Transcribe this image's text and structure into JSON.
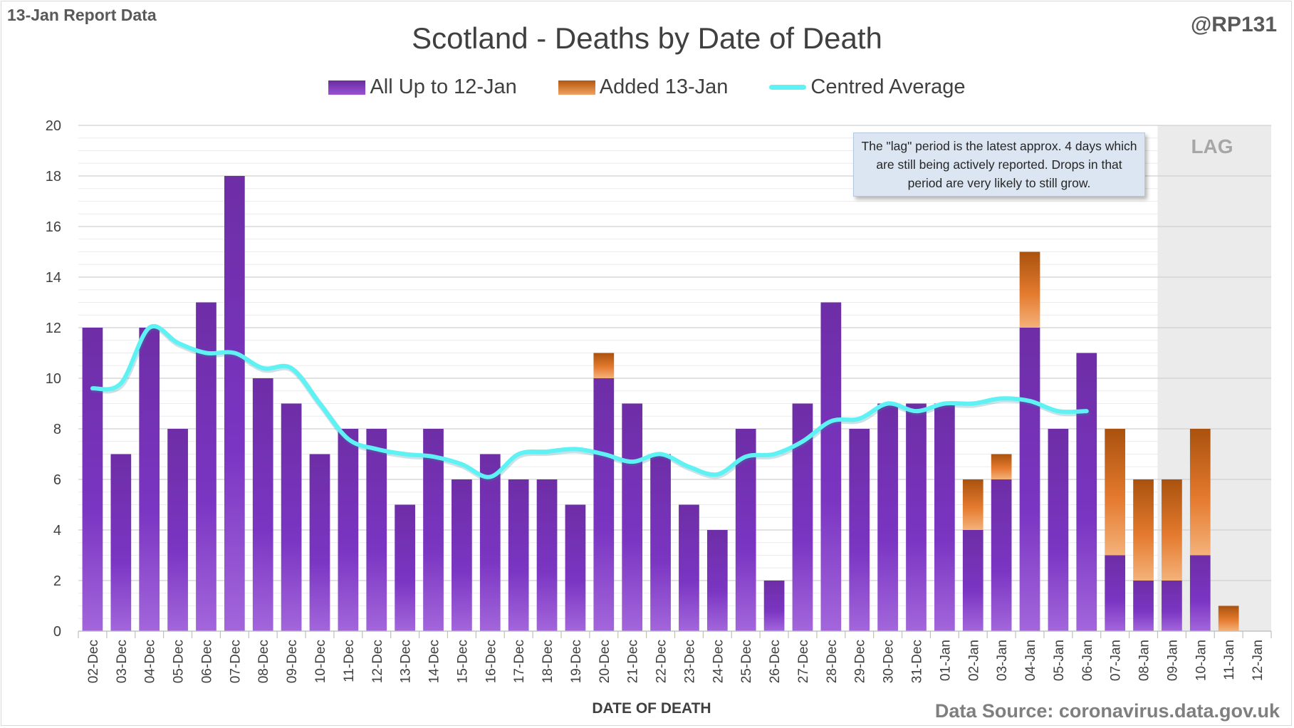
{
  "header": {
    "report_label": "13-Jan Report Data",
    "handle": "@RP131"
  },
  "footer": {
    "source": "Data Source: coronavirus.data.gov.uk"
  },
  "annotation": "The \"lag\" period is the latest approx. 4 days which are still being actively reported.  Drops in that period are very likely to still grow.",
  "lag_label": "LAG",
  "colors": {
    "base": "#7b33c0",
    "added": "#e5782a",
    "average": "#5ef2f4",
    "lag_shade": "#e7e7e7"
  },
  "chart_data": {
    "type": "bar",
    "stacked": true,
    "title": "Scotland - Deaths by Date of Death",
    "xlabel": "DATE OF DEATH",
    "ylabel": "",
    "ylim": [
      0,
      20
    ],
    "yticks": [
      0,
      2,
      4,
      6,
      8,
      10,
      12,
      14,
      16,
      18,
      20
    ],
    "grid": true,
    "legend_position": "top",
    "categories": [
      "02-Dec",
      "03-Dec",
      "04-Dec",
      "05-Dec",
      "06-Dec",
      "07-Dec",
      "08-Dec",
      "09-Dec",
      "10-Dec",
      "11-Dec",
      "12-Dec",
      "13-Dec",
      "14-Dec",
      "15-Dec",
      "16-Dec",
      "17-Dec",
      "18-Dec",
      "19-Dec",
      "20-Dec",
      "21-Dec",
      "22-Dec",
      "23-Dec",
      "24-Dec",
      "25-Dec",
      "26-Dec",
      "27-Dec",
      "28-Dec",
      "29-Dec",
      "30-Dec",
      "31-Dec",
      "01-Jan",
      "02-Jan",
      "03-Jan",
      "04-Jan",
      "05-Jan",
      "06-Jan",
      "07-Jan",
      "08-Jan",
      "09-Jan",
      "10-Jan",
      "11-Jan",
      "12-Jan"
    ],
    "series": [
      {
        "name": "All Up to 12-Jan",
        "type": "bar",
        "values": [
          12,
          7,
          12,
          8,
          13,
          18,
          10,
          9,
          7,
          8,
          8,
          5,
          8,
          6,
          7,
          6,
          6,
          5,
          10,
          9,
          7,
          5,
          4,
          8,
          2,
          9,
          13,
          8,
          9,
          9,
          9,
          4,
          6,
          12,
          8,
          11,
          3,
          2,
          2,
          3,
          0,
          0
        ]
      },
      {
        "name": "Added 13-Jan",
        "type": "bar",
        "values": [
          0,
          0,
          0,
          0,
          0,
          0,
          0,
          0,
          0,
          0,
          0,
          0,
          0,
          0,
          0,
          0,
          0,
          0,
          1,
          0,
          0,
          0,
          0,
          0,
          0,
          0,
          0,
          0,
          0,
          0,
          0,
          2,
          1,
          3,
          0,
          0,
          5,
          4,
          4,
          5,
          1,
          0
        ]
      },
      {
        "name": "Centred Average",
        "type": "line",
        "values": [
          9.6,
          9.8,
          12.0,
          11.4,
          11.0,
          11.0,
          10.4,
          10.4,
          9.0,
          7.6,
          7.2,
          7.0,
          6.9,
          6.6,
          6.1,
          7.0,
          7.1,
          7.2,
          7.0,
          6.7,
          7.0,
          6.5,
          6.2,
          6.9,
          7.0,
          7.5,
          8.3,
          8.4,
          9.0,
          8.7,
          9.0,
          9.0,
          9.2,
          9.1,
          8.7,
          8.7,
          null,
          null,
          null,
          null,
          null,
          null
        ]
      }
    ],
    "lag_start_category": "09-Jan"
  }
}
